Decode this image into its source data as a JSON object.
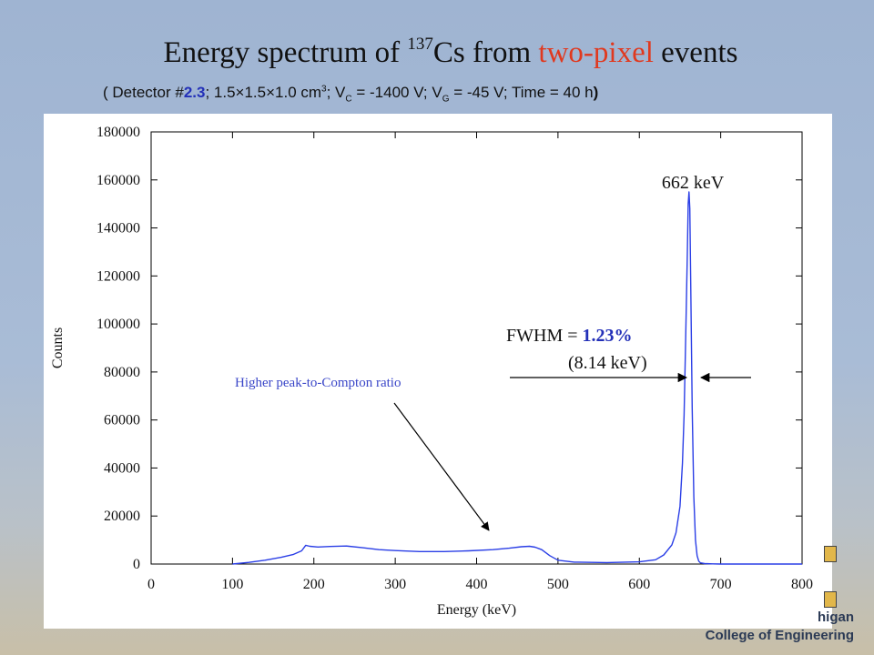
{
  "slide": {
    "title_pre": "Energy spectrum of ",
    "isotope_mass": "137",
    "isotope_symbol": "Cs from ",
    "title_highlight": "two-pixel",
    "title_post": " events",
    "subtitle": {
      "p1": "( Detector #",
      "detector_no": "2.3",
      "p2": "; 1.5×1.5×1.0 cm",
      "p2_sup": "3",
      "p3": "; V",
      "p3_sub": "C",
      "p4": " = -1400 V; V",
      "p4_sub": "G",
      "p5": " = -45 V; Time = 40 h",
      "p6": ")"
    },
    "logo": {
      "line1": "higan",
      "line2": "College of Engineering"
    }
  },
  "colors": {
    "line": "#2a3ee6",
    "highlight_red": "#e0391f",
    "highlight_blue": "#2330b8",
    "annotation_blue": "#3a46c8"
  },
  "chart_data": {
    "type": "line",
    "xlabel": "Energy (keV)",
    "ylabel": "Counts",
    "xlim": [
      0,
      800
    ],
    "ylim": [
      0,
      180000
    ],
    "xticks": [
      0,
      100,
      200,
      300,
      400,
      500,
      600,
      700,
      800
    ],
    "yticks": [
      0,
      20000,
      40000,
      60000,
      80000,
      100000,
      120000,
      140000,
      160000,
      180000
    ],
    "grid": false,
    "series": [
      {
        "x": [
          100,
          120,
          140,
          160,
          175,
          185,
          190,
          195,
          205,
          220,
          240,
          260,
          280,
          300,
          330,
          360,
          390,
          420,
          440,
          455,
          465,
          472,
          480,
          490,
          500,
          520,
          560,
          600,
          620,
          630,
          640,
          645,
          650,
          653,
          655,
          657,
          659,
          660,
          661,
          662,
          663,
          665,
          667,
          669,
          671,
          673,
          675,
          680,
          690,
          700,
          750,
          800
        ],
        "values": [
          0,
          700,
          1600,
          2800,
          4000,
          5500,
          7800,
          7400,
          7100,
          7300,
          7500,
          6800,
          6000,
          5600,
          5200,
          5200,
          5500,
          6000,
          6600,
          7200,
          7400,
          7000,
          6000,
          3500,
          1600,
          800,
          600,
          900,
          1800,
          3800,
          8000,
          13000,
          24000,
          42000,
          62000,
          95000,
          130000,
          150000,
          155000,
          148000,
          120000,
          65000,
          28000,
          10000,
          3500,
          1200,
          500,
          200,
          80,
          0,
          0,
          0
        ]
      }
    ],
    "annotations": {
      "peak": "662 keV",
      "fwhm_label": "FWHM = ",
      "fwhm_value": "1.23%",
      "fwhm_kev": "(8.14 keV)",
      "compton": "Higher peak-to-Compton ratio"
    }
  }
}
